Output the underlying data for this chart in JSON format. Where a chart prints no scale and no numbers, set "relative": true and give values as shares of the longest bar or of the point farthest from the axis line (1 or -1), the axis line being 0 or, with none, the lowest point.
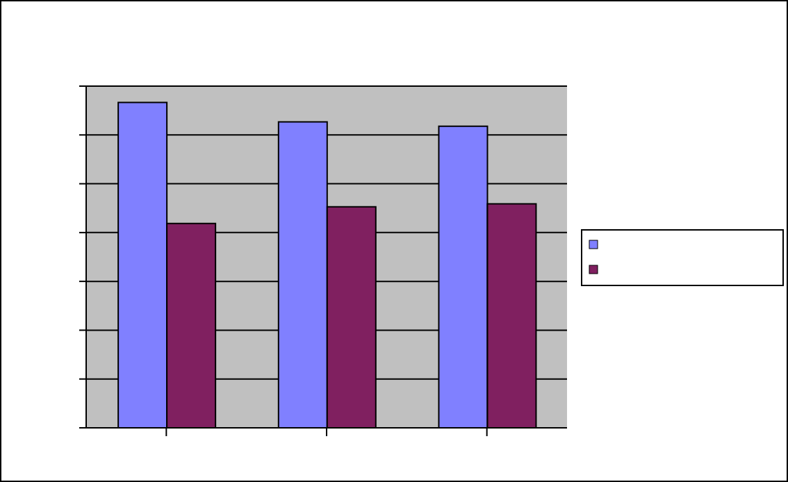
{
  "chart_data": {
    "type": "bar",
    "relative": true,
    "categories": [
      null,
      null,
      null
    ],
    "series": [
      {
        "color": "#8080ff",
        "values": [
          1,
          0.94,
          0.927
        ]
      },
      {
        "color": "#802060",
        "values": [
          0.628,
          0.679,
          0.688
        ]
      }
    ],
    "grid": "y"
  }
}
